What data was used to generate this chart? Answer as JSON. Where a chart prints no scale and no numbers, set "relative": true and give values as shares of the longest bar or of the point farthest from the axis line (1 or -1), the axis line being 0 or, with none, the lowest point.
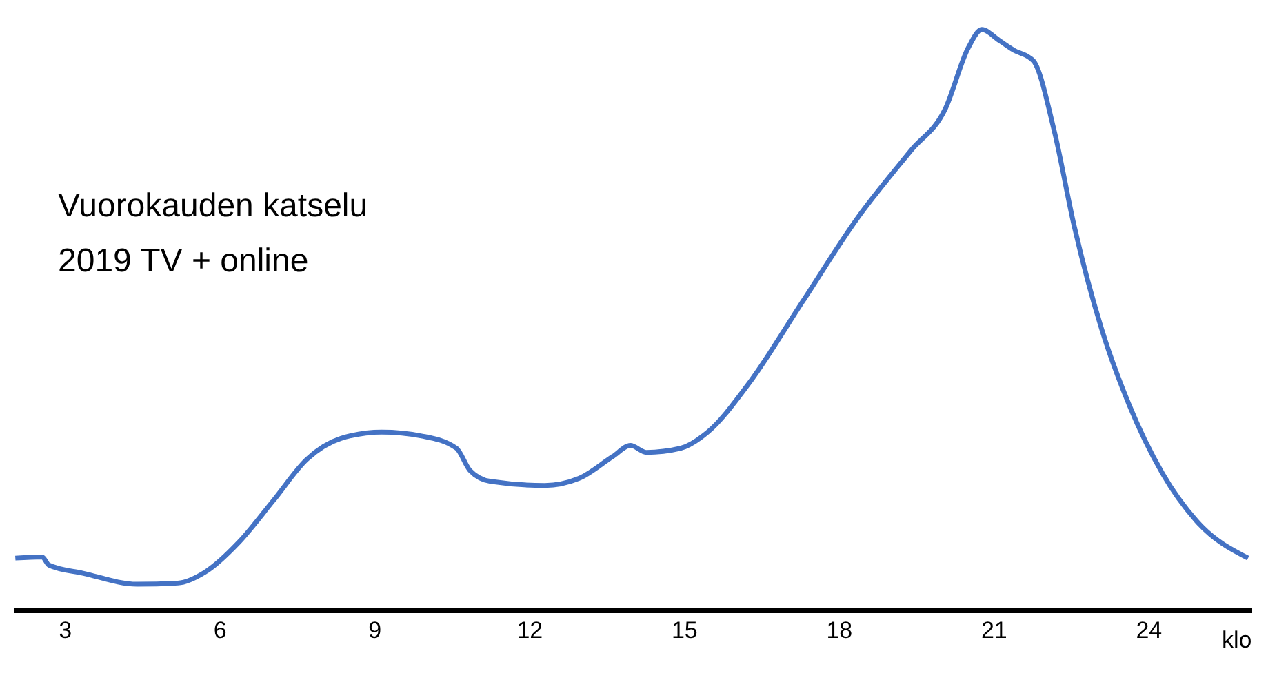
{
  "chart_data": {
    "type": "line",
    "title": "Vuorokauden katselu",
    "subtitle": "2019 TV + online",
    "xlabel": "klo",
    "relative": true,
    "xlim": [
      2,
      26
    ],
    "xticks": [
      3,
      6,
      9,
      12,
      15,
      18,
      21,
      24
    ],
    "grid": false,
    "legend": false,
    "marker": "none",
    "line_style": "solid",
    "series": [
      {
        "color": "#4472c4",
        "x": [
          2.03,
          2.55,
          2.68,
          3.34,
          4.39,
          5.18,
          5.71,
          6.37,
          7.03,
          7.68,
          8.34,
          9.13,
          9.92,
          10.58,
          10.84,
          11.24,
          12.29,
          12.95,
          13.61,
          13.95,
          14.26,
          14.92,
          15.45,
          16.24,
          17.29,
          18.34,
          19.39,
          20.05,
          20.5,
          20.76,
          21.1,
          21.37,
          21.76,
          22.16,
          22.55,
          23.08,
          23.61,
          24.26,
          24.92,
          25.92
        ],
        "values": [
          0.09,
          0.092,
          0.078,
          0.064,
          0.045,
          0.047,
          0.066,
          0.118,
          0.189,
          0.26,
          0.296,
          0.307,
          0.3,
          0.279,
          0.241,
          0.222,
          0.215,
          0.227,
          0.265,
          0.284,
          0.272,
          0.279,
          0.307,
          0.39,
          0.532,
          0.674,
          0.792,
          0.863,
          0.969,
          1,
          0.981,
          0.965,
          0.946,
          0.827,
          0.662,
          0.485,
          0.355,
          0.236,
          0.154,
          0.09
        ]
      }
    ]
  }
}
